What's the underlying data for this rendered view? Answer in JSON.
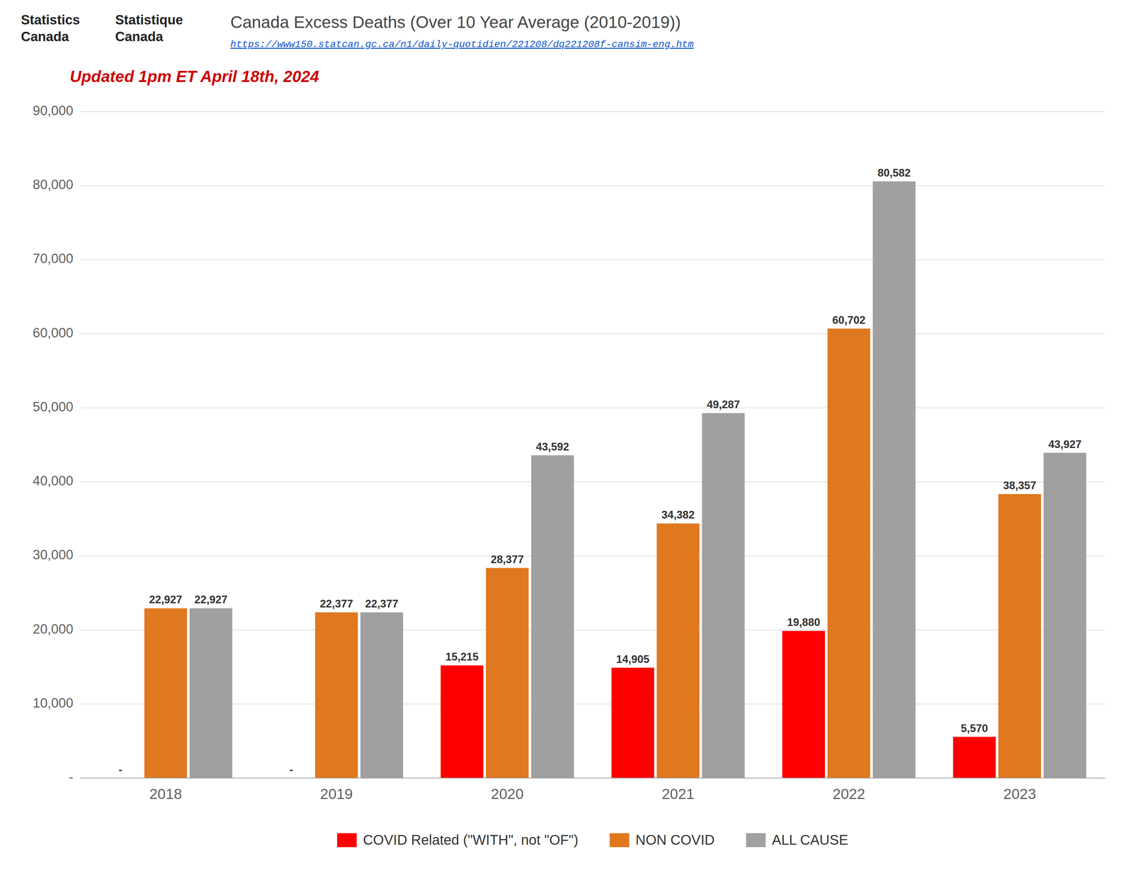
{
  "chart_data": {
    "type": "bar",
    "title": "Canada Excess Deaths (Over 10 Year Average (2010-2019))",
    "subtitle": "Updated 1pm ET April 18th, 2024",
    "annotations": [
      "Statistics\nCanada",
      "Statistique\nCanada",
      "https://www150.statcan.gc.ca/n1/daily-quotidien/221208/dq221208f-cansim-eng.htm"
    ],
    "categories": [
      "2018",
      "2019",
      "2020",
      "2021",
      "2022",
      "2023"
    ],
    "series": [
      {
        "name": "COVID Related (\"WITH\", not \"OF\")",
        "color": "#FF0000",
        "values": [
          0,
          0,
          15215,
          14905,
          19880,
          5570
        ],
        "value_labels": [
          "-",
          "-",
          "15,215",
          "14,905",
          "19,880",
          "5,570"
        ]
      },
      {
        "name": "NON COVID",
        "color": "#E07820",
        "values": [
          22927,
          22377,
          28377,
          34382,
          60702,
          38357
        ],
        "value_labels": [
          "22,927",
          "22,377",
          "28,377",
          "34,382",
          "60,702",
          "38,357"
        ]
      },
      {
        "name": "ALL CAUSE",
        "color": "#A0A0A0",
        "values": [
          22927,
          22377,
          43592,
          49287,
          80582,
          43927
        ],
        "value_labels": [
          "22,927",
          "22,377",
          "43,592",
          "49,287",
          "80,582",
          "43,927"
        ]
      }
    ],
    "ylim": [
      0,
      90000
    ],
    "yticks": [
      {
        "value": 0,
        "label": "-"
      },
      {
        "value": 10000,
        "label": "10,000"
      },
      {
        "value": 20000,
        "label": "20,000"
      },
      {
        "value": 30000,
        "label": "30,000"
      },
      {
        "value": 40000,
        "label": "40,000"
      },
      {
        "value": 50000,
        "label": "50,000"
      },
      {
        "value": 60000,
        "label": "60,000"
      },
      {
        "value": 70000,
        "label": "70,000"
      },
      {
        "value": 80000,
        "label": "80,000"
      },
      {
        "value": 90000,
        "label": "90,000"
      }
    ],
    "grid": true,
    "legend": "bottom",
    "data_labels": true
  }
}
